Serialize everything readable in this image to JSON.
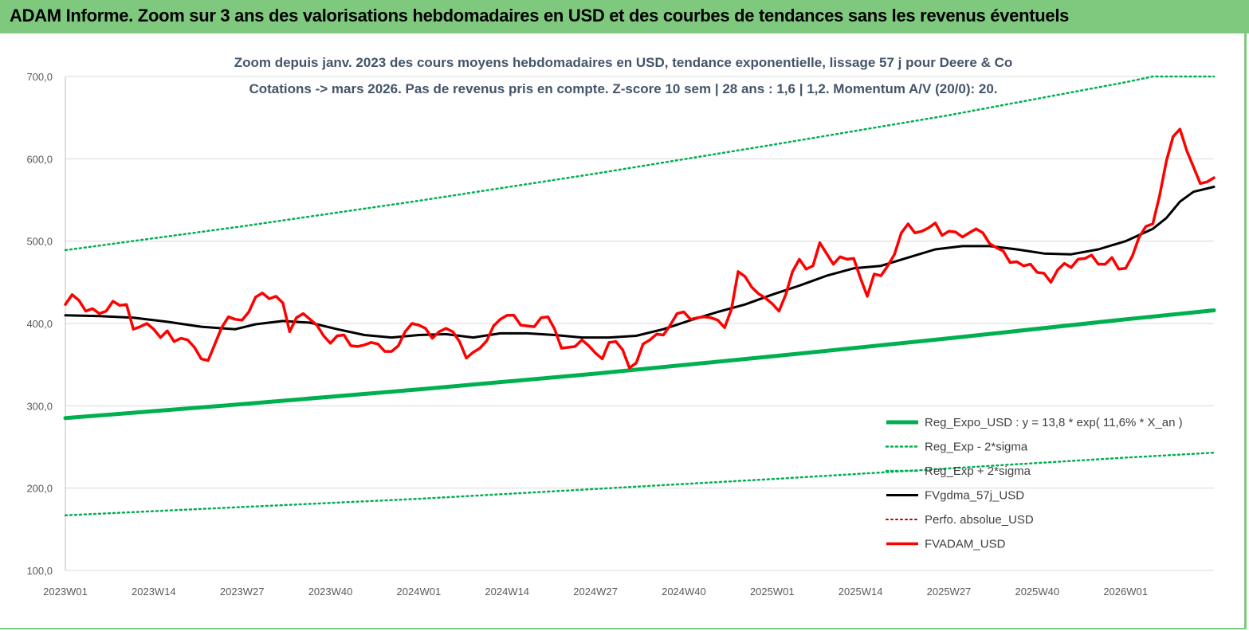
{
  "banner": {
    "title": "ADAM Informe. Zoom sur 3 ans des valorisations hebdomadaires en USD et des courbes de tendances sans les revenus éventuels"
  },
  "chart_data": {
    "type": "line",
    "title": "Zoom depuis janv. 2023 des cours moyens hebdomadaires en USD, tendance exponentielle, lissage 57 j pour Deere & Co",
    "subtitle": "Cotations -> mars 2026. Pas de revenus pris en compte. Z-score 10 sem | 28 ans : 1,6 | 1,2. Momentum A/V (20/0): 20.",
    "xlabel": "",
    "ylabel": "",
    "ylim": [
      100,
      700
    ],
    "y_ticks": [
      "700,0",
      "600,0",
      "500,0",
      "400,0",
      "300,0",
      "200,0",
      "100,0"
    ],
    "y_tick_values": [
      700,
      600,
      500,
      400,
      300,
      200,
      100
    ],
    "x_ticks": [
      "2023W01",
      "2023W14",
      "2023W27",
      "2023W40",
      "2024W01",
      "2024W14",
      "2024W27",
      "2024W40",
      "2025W01",
      "2025W14",
      "2025W27",
      "2025W40",
      "2026W01"
    ],
    "x_tick_weeks": [
      0,
      13,
      26,
      39,
      52,
      65,
      78,
      91,
      104,
      117,
      130,
      143,
      156
    ],
    "x_weeks_total": 169,
    "grid": "horizontal",
    "legend_position": "bottom-right",
    "series": [
      {
        "name": "Reg_Expo_USD : y = 13,8 * exp( 11,6% * X_an )",
        "color": "#00b050",
        "style": "solid",
        "width": 5,
        "points": [
          [
            0,
            285
          ],
          [
            26,
            302
          ],
          [
            52,
            320
          ],
          [
            78,
            339
          ],
          [
            104,
            360
          ],
          [
            130,
            382
          ],
          [
            156,
            405
          ],
          [
            169,
            416
          ]
        ]
      },
      {
        "name": "Reg_Exp - 2*sigma",
        "color": "#00b050",
        "style": "dotted",
        "width": 2.5,
        "points": [
          [
            0,
            167
          ],
          [
            26,
            177
          ],
          [
            52,
            187
          ],
          [
            78,
            199
          ],
          [
            104,
            211
          ],
          [
            130,
            224
          ],
          [
            156,
            237
          ],
          [
            169,
            243
          ]
        ]
      },
      {
        "name": "Reg_Exp + 2*sigma",
        "color": "#00b050",
        "style": "dotted",
        "width": 2.5,
        "points": [
          [
            0,
            489
          ],
          [
            26,
            518
          ],
          [
            52,
            549
          ],
          [
            78,
            582
          ],
          [
            104,
            617
          ],
          [
            130,
            653
          ],
          [
            156,
            693
          ],
          [
            160,
            700
          ],
          [
            169,
            700
          ]
        ]
      },
      {
        "name": "FVgdma_57j_USD",
        "color": "#000000",
        "style": "solid",
        "width": 3,
        "points": [
          [
            0,
            410
          ],
          [
            5,
            409
          ],
          [
            10,
            407
          ],
          [
            15,
            402
          ],
          [
            20,
            396
          ],
          [
            25,
            393
          ],
          [
            28,
            399
          ],
          [
            32,
            403
          ],
          [
            36,
            401
          ],
          [
            40,
            393
          ],
          [
            44,
            386
          ],
          [
            48,
            383
          ],
          [
            52,
            386
          ],
          [
            56,
            387
          ],
          [
            60,
            383
          ],
          [
            64,
            388
          ],
          [
            68,
            388
          ],
          [
            72,
            386
          ],
          [
            76,
            383
          ],
          [
            80,
            383
          ],
          [
            84,
            385
          ],
          [
            88,
            393
          ],
          [
            92,
            404
          ],
          [
            96,
            414
          ],
          [
            100,
            423
          ],
          [
            104,
            435
          ],
          [
            108,
            446
          ],
          [
            112,
            458
          ],
          [
            116,
            467
          ],
          [
            120,
            470
          ],
          [
            124,
            480
          ],
          [
            128,
            490
          ],
          [
            132,
            494
          ],
          [
            136,
            494
          ],
          [
            140,
            490
          ],
          [
            144,
            485
          ],
          [
            148,
            484
          ],
          [
            152,
            490
          ],
          [
            156,
            500
          ],
          [
            160,
            515
          ],
          [
            162,
            528
          ],
          [
            164,
            548
          ],
          [
            166,
            560
          ],
          [
            169,
            566
          ]
        ]
      },
      {
        "name": "Perfo. absolue_USD",
        "color": "#c00000",
        "style": "dotted",
        "width": 2,
        "points": []
      },
      {
        "name": "FVADAM_USD",
        "color": "#ff0000",
        "style": "solid",
        "width": 3.5,
        "points": [
          [
            0,
            423
          ],
          [
            1,
            435
          ],
          [
            2,
            428
          ],
          [
            3,
            415
          ],
          [
            4,
            418
          ],
          [
            5,
            412
          ],
          [
            6,
            415
          ],
          [
            7,
            427
          ],
          [
            8,
            422
          ],
          [
            9,
            423
          ],
          [
            10,
            393
          ],
          [
            11,
            396
          ],
          [
            12,
            400
          ],
          [
            13,
            393
          ],
          [
            14,
            383
          ],
          [
            15,
            391
          ],
          [
            16,
            378
          ],
          [
            17,
            382
          ],
          [
            18,
            380
          ],
          [
            19,
            371
          ],
          [
            20,
            357
          ],
          [
            21,
            355
          ],
          [
            22,
            375
          ],
          [
            23,
            395
          ],
          [
            24,
            408
          ],
          [
            25,
            405
          ],
          [
            26,
            404
          ],
          [
            27,
            414
          ],
          [
            28,
            432
          ],
          [
            29,
            437
          ],
          [
            30,
            430
          ],
          [
            31,
            433
          ],
          [
            32,
            425
          ],
          [
            33,
            390
          ],
          [
            34,
            407
          ],
          [
            35,
            412
          ],
          [
            36,
            405
          ],
          [
            37,
            398
          ],
          [
            38,
            385
          ],
          [
            39,
            376
          ],
          [
            40,
            385
          ],
          [
            41,
            386
          ],
          [
            42,
            373
          ],
          [
            43,
            372
          ],
          [
            44,
            374
          ],
          [
            45,
            377
          ],
          [
            46,
            375
          ],
          [
            47,
            366
          ],
          [
            48,
            366
          ],
          [
            49,
            373
          ],
          [
            50,
            390
          ],
          [
            51,
            400
          ],
          [
            52,
            398
          ],
          [
            53,
            394
          ],
          [
            54,
            382
          ],
          [
            55,
            390
          ],
          [
            56,
            394
          ],
          [
            57,
            390
          ],
          [
            58,
            378
          ],
          [
            59,
            358
          ],
          [
            60,
            365
          ],
          [
            61,
            370
          ],
          [
            62,
            379
          ],
          [
            63,
            397
          ],
          [
            64,
            405
          ],
          [
            65,
            410
          ],
          [
            66,
            410
          ],
          [
            67,
            398
          ],
          [
            68,
            397
          ],
          [
            69,
            396
          ],
          [
            70,
            407
          ],
          [
            71,
            408
          ],
          [
            72,
            393
          ],
          [
            73,
            370
          ],
          [
            74,
            371
          ],
          [
            75,
            372
          ],
          [
            76,
            380
          ],
          [
            77,
            373
          ],
          [
            78,
            364
          ],
          [
            79,
            357
          ],
          [
            80,
            377
          ],
          [
            81,
            378
          ],
          [
            82,
            368
          ],
          [
            83,
            346
          ],
          [
            84,
            352
          ],
          [
            85,
            375
          ],
          [
            86,
            380
          ],
          [
            87,
            387
          ],
          [
            88,
            386
          ],
          [
            89,
            398
          ],
          [
            90,
            412
          ],
          [
            91,
            414
          ],
          [
            92,
            405
          ],
          [
            93,
            407
          ],
          [
            94,
            408
          ],
          [
            95,
            407
          ],
          [
            96,
            404
          ],
          [
            97,
            395
          ],
          [
            98,
            417
          ],
          [
            99,
            463
          ],
          [
            100,
            457
          ],
          [
            101,
            444
          ],
          [
            102,
            436
          ],
          [
            103,
            431
          ],
          [
            104,
            424
          ],
          [
            105,
            415
          ],
          [
            106,
            435
          ],
          [
            107,
            463
          ],
          [
            108,
            478
          ],
          [
            109,
            466
          ],
          [
            110,
            470
          ],
          [
            111,
            498
          ],
          [
            112,
            485
          ],
          [
            113,
            472
          ],
          [
            114,
            481
          ],
          [
            115,
            478
          ],
          [
            116,
            479
          ],
          [
            117,
            455
          ],
          [
            118,
            433
          ],
          [
            119,
            460
          ],
          [
            120,
            458
          ],
          [
            121,
            470
          ],
          [
            122,
            484
          ],
          [
            123,
            510
          ],
          [
            124,
            521
          ],
          [
            125,
            510
          ],
          [
            126,
            512
          ],
          [
            127,
            516
          ],
          [
            128,
            522
          ],
          [
            129,
            507
          ],
          [
            130,
            512
          ],
          [
            131,
            511
          ],
          [
            132,
            505
          ],
          [
            133,
            510
          ],
          [
            134,
            515
          ],
          [
            135,
            510
          ],
          [
            136,
            497
          ],
          [
            137,
            492
          ],
          [
            138,
            488
          ],
          [
            139,
            474
          ],
          [
            140,
            475
          ],
          [
            141,
            470
          ],
          [
            142,
            472
          ],
          [
            143,
            462
          ],
          [
            144,
            461
          ],
          [
            145,
            450
          ],
          [
            146,
            465
          ],
          [
            147,
            473
          ],
          [
            148,
            468
          ],
          [
            149,
            478
          ],
          [
            150,
            479
          ],
          [
            151,
            483
          ],
          [
            152,
            472
          ],
          [
            153,
            472
          ],
          [
            154,
            480
          ],
          [
            155,
            466
          ],
          [
            156,
            467
          ],
          [
            157,
            482
          ],
          [
            158,
            505
          ],
          [
            159,
            518
          ],
          [
            160,
            521
          ],
          [
            161,
            555
          ],
          [
            162,
            597
          ],
          [
            163,
            627
          ],
          [
            164,
            636
          ],
          [
            165,
            610
          ],
          [
            166,
            590
          ],
          [
            167,
            570
          ],
          [
            168,
            572
          ],
          [
            169,
            577
          ]
        ]
      }
    ]
  }
}
